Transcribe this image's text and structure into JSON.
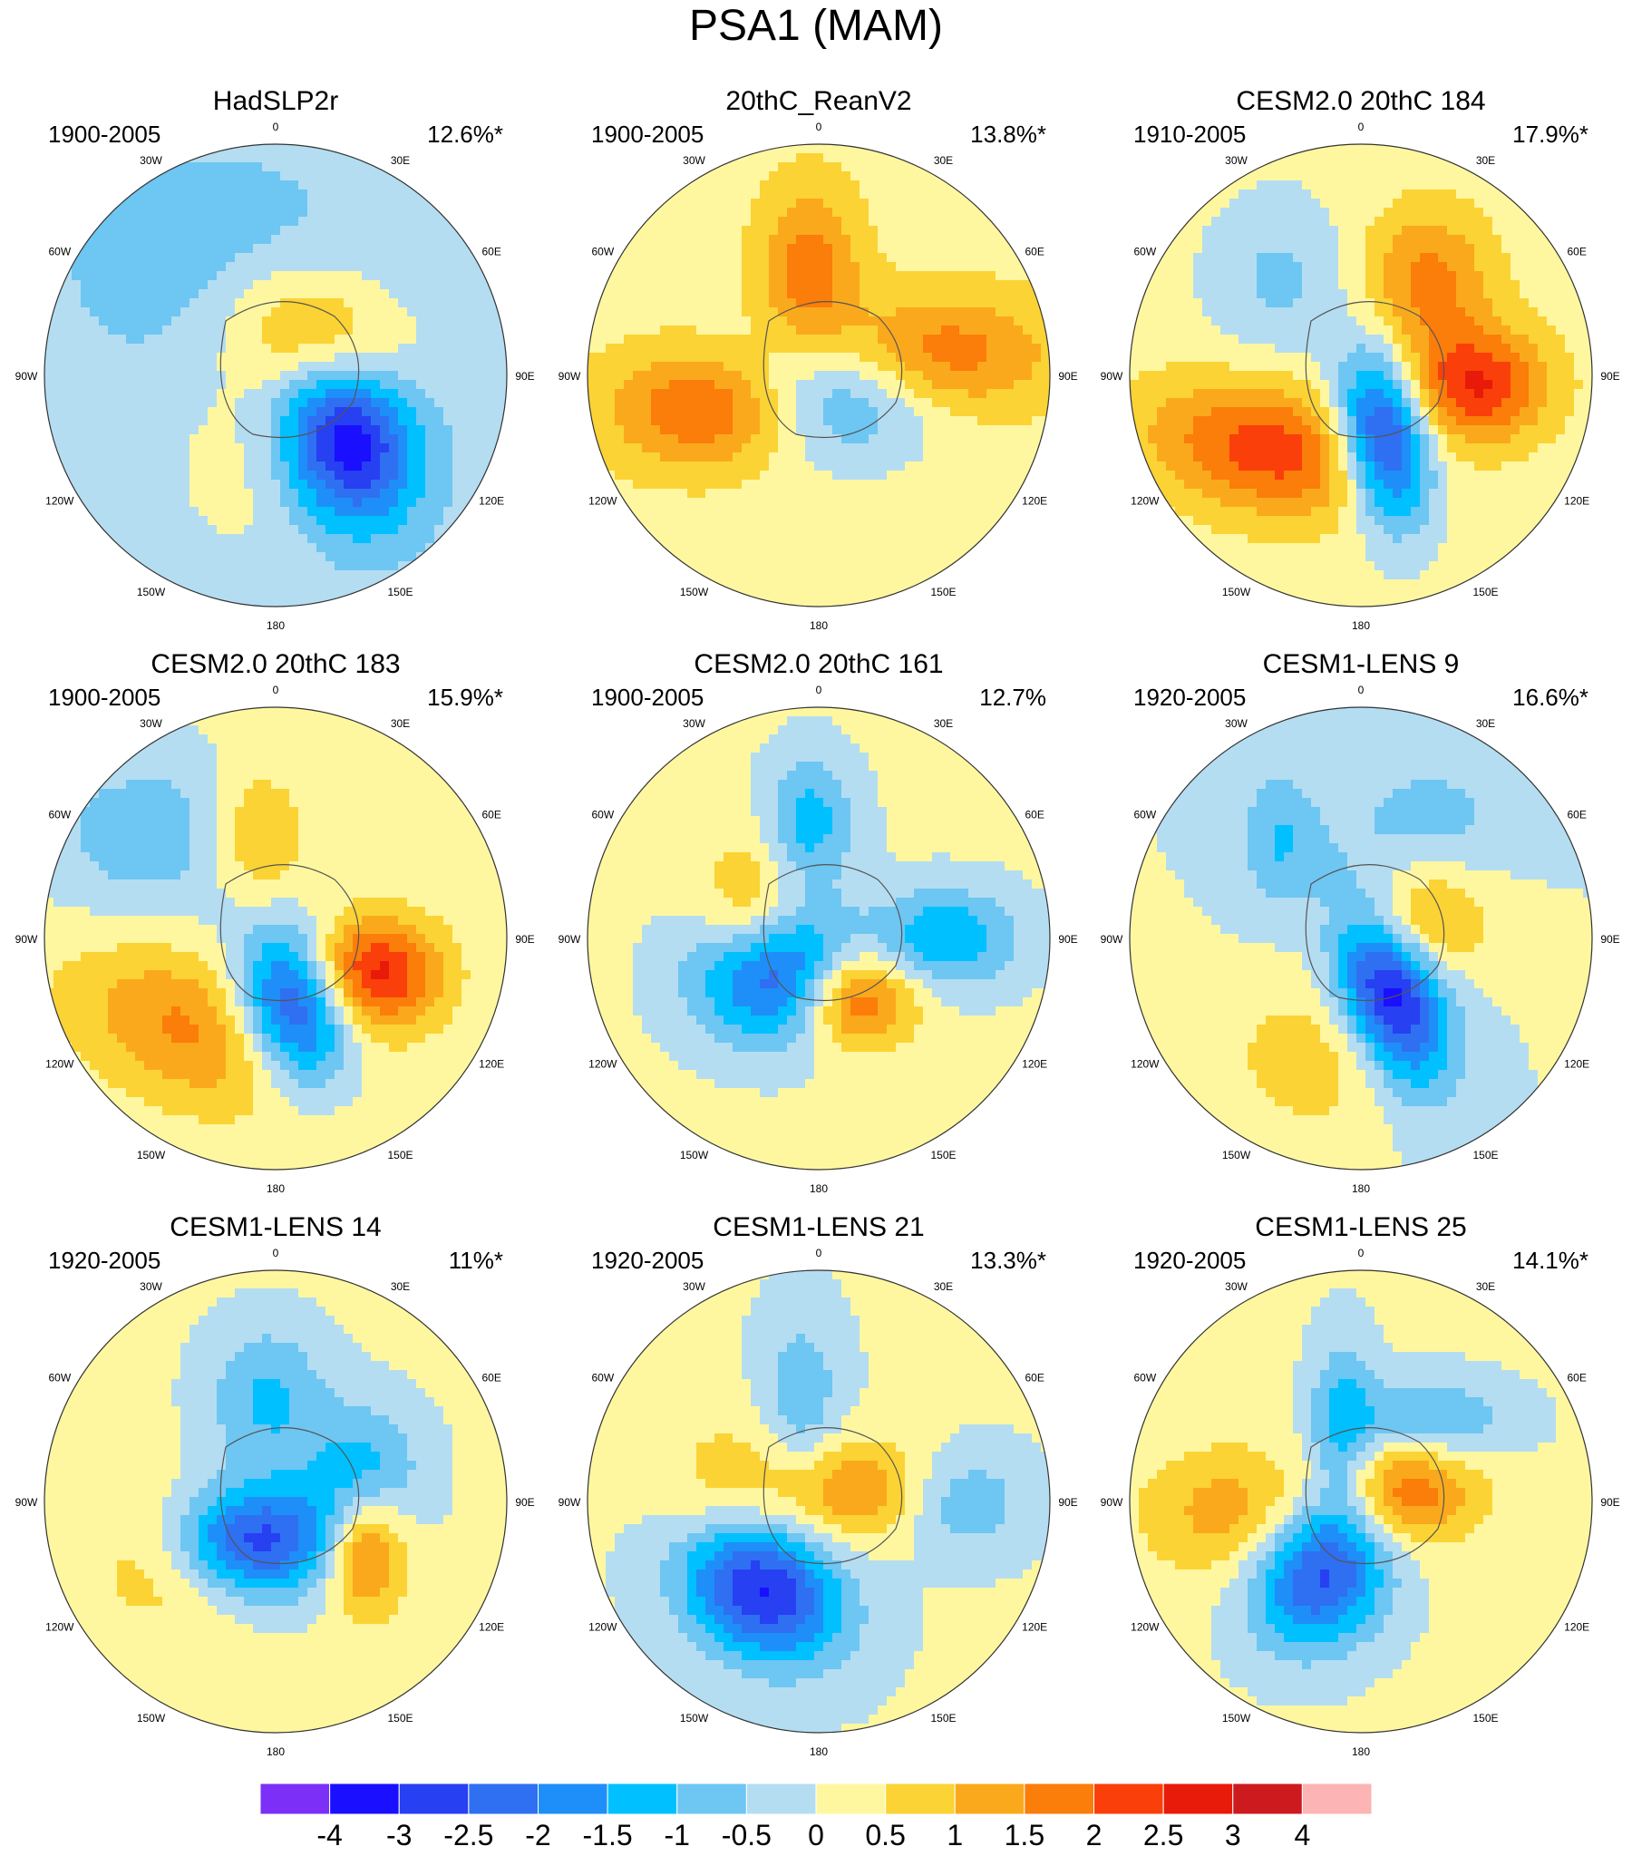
{
  "title": "PSA1 (MAM)",
  "lon_labels": [
    "0",
    "30E",
    "60E",
    "90E",
    "120E",
    "150E",
    "180",
    "150W",
    "120W",
    "90W",
    "60W",
    "30W"
  ],
  "panels": [
    {
      "name": "HadSLP2r",
      "period": "1900-2005",
      "variance": "12.6%*",
      "blobs": [
        {
          "az": 132,
          "r": 0.42,
          "sx": 0.2,
          "sy": 0.26,
          "rot": -15,
          "peak": -3.2
        },
        {
          "az": 45,
          "r": 0.25,
          "sx": 0.28,
          "sy": 0.2,
          "rot": 20,
          "peak": 1.7
        },
        {
          "az": 200,
          "r": 0.35,
          "sx": 0.25,
          "sy": 0.35,
          "rot": 0,
          "peak": 0.5
        },
        {
          "az": 330,
          "r": 0.55,
          "sx": 0.45,
          "sy": 0.35,
          "rot": 0,
          "peak": -0.6
        }
      ],
      "base": -0.5
    },
    {
      "name": "20thC_ReanV2",
      "period": "1900-2005",
      "variance": "13.8%*",
      "blobs": [
        {
          "az": 170,
          "r": 0.1,
          "sx": 0.32,
          "sy": 0.2,
          "rot": 0,
          "peak": -2.3
        },
        {
          "az": 80,
          "r": 0.5,
          "sx": 0.35,
          "sy": 0.18,
          "rot": 0,
          "peak": 1.7
        },
        {
          "az": 250,
          "r": 0.42,
          "sx": 0.33,
          "sy": 0.18,
          "rot": 0,
          "peak": 2.3
        },
        {
          "az": 355,
          "r": 0.45,
          "sx": 0.15,
          "sy": 0.25,
          "rot": 0,
          "peak": 1.5
        }
      ],
      "base": 0.6
    },
    {
      "name": "CESM2.0 20thC 184",
      "period": "1910-2005",
      "variance": "17.9%*",
      "blobs": [
        {
          "az": 160,
          "r": 0.3,
          "sx": 0.14,
          "sy": 0.26,
          "rot": -10,
          "peak": -3.6
        },
        {
          "az": 95,
          "r": 0.5,
          "sx": 0.22,
          "sy": 0.17,
          "rot": 0,
          "peak": 2.3
        },
        {
          "az": 35,
          "r": 0.5,
          "sx": 0.2,
          "sy": 0.22,
          "rot": 0,
          "peak": 1.5
        },
        {
          "az": 230,
          "r": 0.5,
          "sx": 0.38,
          "sy": 0.2,
          "rot": 10,
          "peak": 2.1
        },
        {
          "az": 320,
          "r": 0.55,
          "sx": 0.22,
          "sy": 0.25,
          "rot": 0,
          "peak": -0.8
        }
      ],
      "base": 0.4
    },
    {
      "name": "CESM2.0 20thC 183",
      "period": "1900-2005",
      "variance": "15.9%*",
      "blobs": [
        {
          "az": 165,
          "r": 0.32,
          "sx": 0.17,
          "sy": 0.24,
          "rot": -15,
          "peak": -3.3
        },
        {
          "az": 110,
          "r": 0.45,
          "sx": 0.2,
          "sy": 0.17,
          "rot": 0,
          "peak": 2.6
        },
        {
          "az": 220,
          "r": 0.52,
          "sx": 0.4,
          "sy": 0.22,
          "rot": 20,
          "peak": 1.5
        },
        {
          "az": 350,
          "r": 0.45,
          "sx": 0.15,
          "sy": 0.2,
          "rot": 0,
          "peak": 1.2
        },
        {
          "az": 310,
          "r": 0.7,
          "sx": 0.35,
          "sy": 0.25,
          "rot": 0,
          "peak": -1.0
        }
      ],
      "base": 0.3
    },
    {
      "name": "CESM2.0 20thC 161",
      "period": "1900-2005",
      "variance": "12.7%",
      "blobs": [
        {
          "az": 230,
          "r": 0.25,
          "sx": 0.24,
          "sy": 0.2,
          "rot": 0,
          "peak": -3.1
        },
        {
          "az": 150,
          "r": 0.3,
          "sx": 0.18,
          "sy": 0.15,
          "rot": 0,
          "peak": 2.4
        },
        {
          "az": 90,
          "r": 0.55,
          "sx": 0.22,
          "sy": 0.15,
          "rot": 0,
          "peak": -1.6
        },
        {
          "az": 355,
          "r": 0.5,
          "sx": 0.14,
          "sy": 0.2,
          "rot": 0,
          "peak": -1.4
        },
        {
          "az": 285,
          "r": 0.3,
          "sx": 0.16,
          "sy": 0.25,
          "rot": 0,
          "peak": 1.3
        }
      ],
      "base": 0.2
    },
    {
      "name": "CESM1-LENS 9",
      "period": "1920-2005",
      "variance": "16.6%*",
      "blobs": [
        {
          "az": 150,
          "r": 0.25,
          "sx": 0.15,
          "sy": 0.3,
          "rot": -20,
          "peak": -3.6
        },
        {
          "az": 70,
          "r": 0.22,
          "sx": 0.23,
          "sy": 0.17,
          "rot": 0,
          "peak": 1.6
        },
        {
          "az": 30,
          "r": 0.6,
          "sx": 0.25,
          "sy": 0.2,
          "rot": 0,
          "peak": -0.7
        },
        {
          "az": 320,
          "r": 0.55,
          "sx": 0.12,
          "sy": 0.22,
          "rot": 0,
          "peak": -1.0
        },
        {
          "az": 200,
          "r": 0.55,
          "sx": 0.3,
          "sy": 0.25,
          "rot": 0,
          "peak": 0.8
        }
      ],
      "base": 0.0
    },
    {
      "name": "CESM1-LENS 14",
      "period": "1920-2005",
      "variance": "11%*",
      "blobs": [
        {
          "az": 210,
          "r": 0.2,
          "sx": 0.26,
          "sy": 0.17,
          "rot": 0,
          "peak": -3.0
        },
        {
          "az": 120,
          "r": 0.45,
          "sx": 0.12,
          "sy": 0.18,
          "rot": 0,
          "peak": 2.0
        },
        {
          "az": 70,
          "r": 0.4,
          "sx": 0.18,
          "sy": 0.2,
          "rot": 0,
          "peak": -1.3
        },
        {
          "az": 355,
          "r": 0.45,
          "sx": 0.18,
          "sy": 0.22,
          "rot": 0,
          "peak": -1.2
        },
        {
          "az": 240,
          "r": 0.5,
          "sx": 0.25,
          "sy": 0.22,
          "rot": 0,
          "peak": 1.0
        }
      ],
      "base": 0.2
    },
    {
      "name": "CESM1-LENS 21",
      "period": "1920-2005",
      "variance": "13.3%*",
      "blobs": [
        {
          "az": 215,
          "r": 0.45,
          "sx": 0.26,
          "sy": 0.2,
          "rot": 35,
          "peak": -3.3
        },
        {
          "az": 75,
          "r": 0.18,
          "sx": 0.25,
          "sy": 0.15,
          "rot": 0,
          "peak": 1.5
        },
        {
          "az": 90,
          "r": 0.6,
          "sx": 0.2,
          "sy": 0.15,
          "rot": 0,
          "peak": -1.1
        },
        {
          "az": 350,
          "r": 0.45,
          "sx": 0.12,
          "sy": 0.25,
          "rot": 0,
          "peak": -1.0
        },
        {
          "az": 270,
          "r": 0.4,
          "sx": 0.22,
          "sy": 0.25,
          "rot": 0,
          "peak": 0.9
        }
      ],
      "base": 0.1
    },
    {
      "name": "CESM1-LENS 25",
      "period": "1920-2005",
      "variance": "14.1%*",
      "blobs": [
        {
          "az": 210,
          "r": 0.35,
          "sx": 0.2,
          "sy": 0.24,
          "rot": 30,
          "peak": -2.8
        },
        {
          "az": 75,
          "r": 0.2,
          "sx": 0.22,
          "sy": 0.17,
          "rot": 0,
          "peak": 1.9
        },
        {
          "az": 40,
          "r": 0.45,
          "sx": 0.25,
          "sy": 0.13,
          "rot": 0,
          "peak": -1.3
        },
        {
          "az": 345,
          "r": 0.3,
          "sx": 0.1,
          "sy": 0.28,
          "rot": 0,
          "peak": -1.3
        },
        {
          "az": 265,
          "r": 0.55,
          "sx": 0.28,
          "sy": 0.2,
          "rot": 0,
          "peak": 1.2
        }
      ],
      "base": 0.2
    }
  ],
  "colorbar": {
    "levels": [
      "-4",
      "-3",
      "-2.5",
      "-2",
      "-1.5",
      "-1",
      "-0.5",
      "0",
      "0.5",
      "1",
      "1.5",
      "2",
      "2.5",
      "3",
      "4"
    ],
    "thresholds": [
      -4,
      -3,
      -2.5,
      -2,
      -1.5,
      -1,
      -0.5,
      0,
      0.5,
      1,
      1.5,
      2,
      2.5,
      3,
      4
    ],
    "colors": [
      "#7b2ff7",
      "#1a0fff",
      "#2640f2",
      "#2f6ff2",
      "#1e8ff8",
      "#00c0ff",
      "#6ec6f2",
      "#b4ddf2",
      "#fff7a0",
      "#fbd334",
      "#fba91c",
      "#fb7d0a",
      "#fa3f0a",
      "#e81a0a",
      "#cc1a1e",
      "#fcb4b4"
    ]
  }
}
